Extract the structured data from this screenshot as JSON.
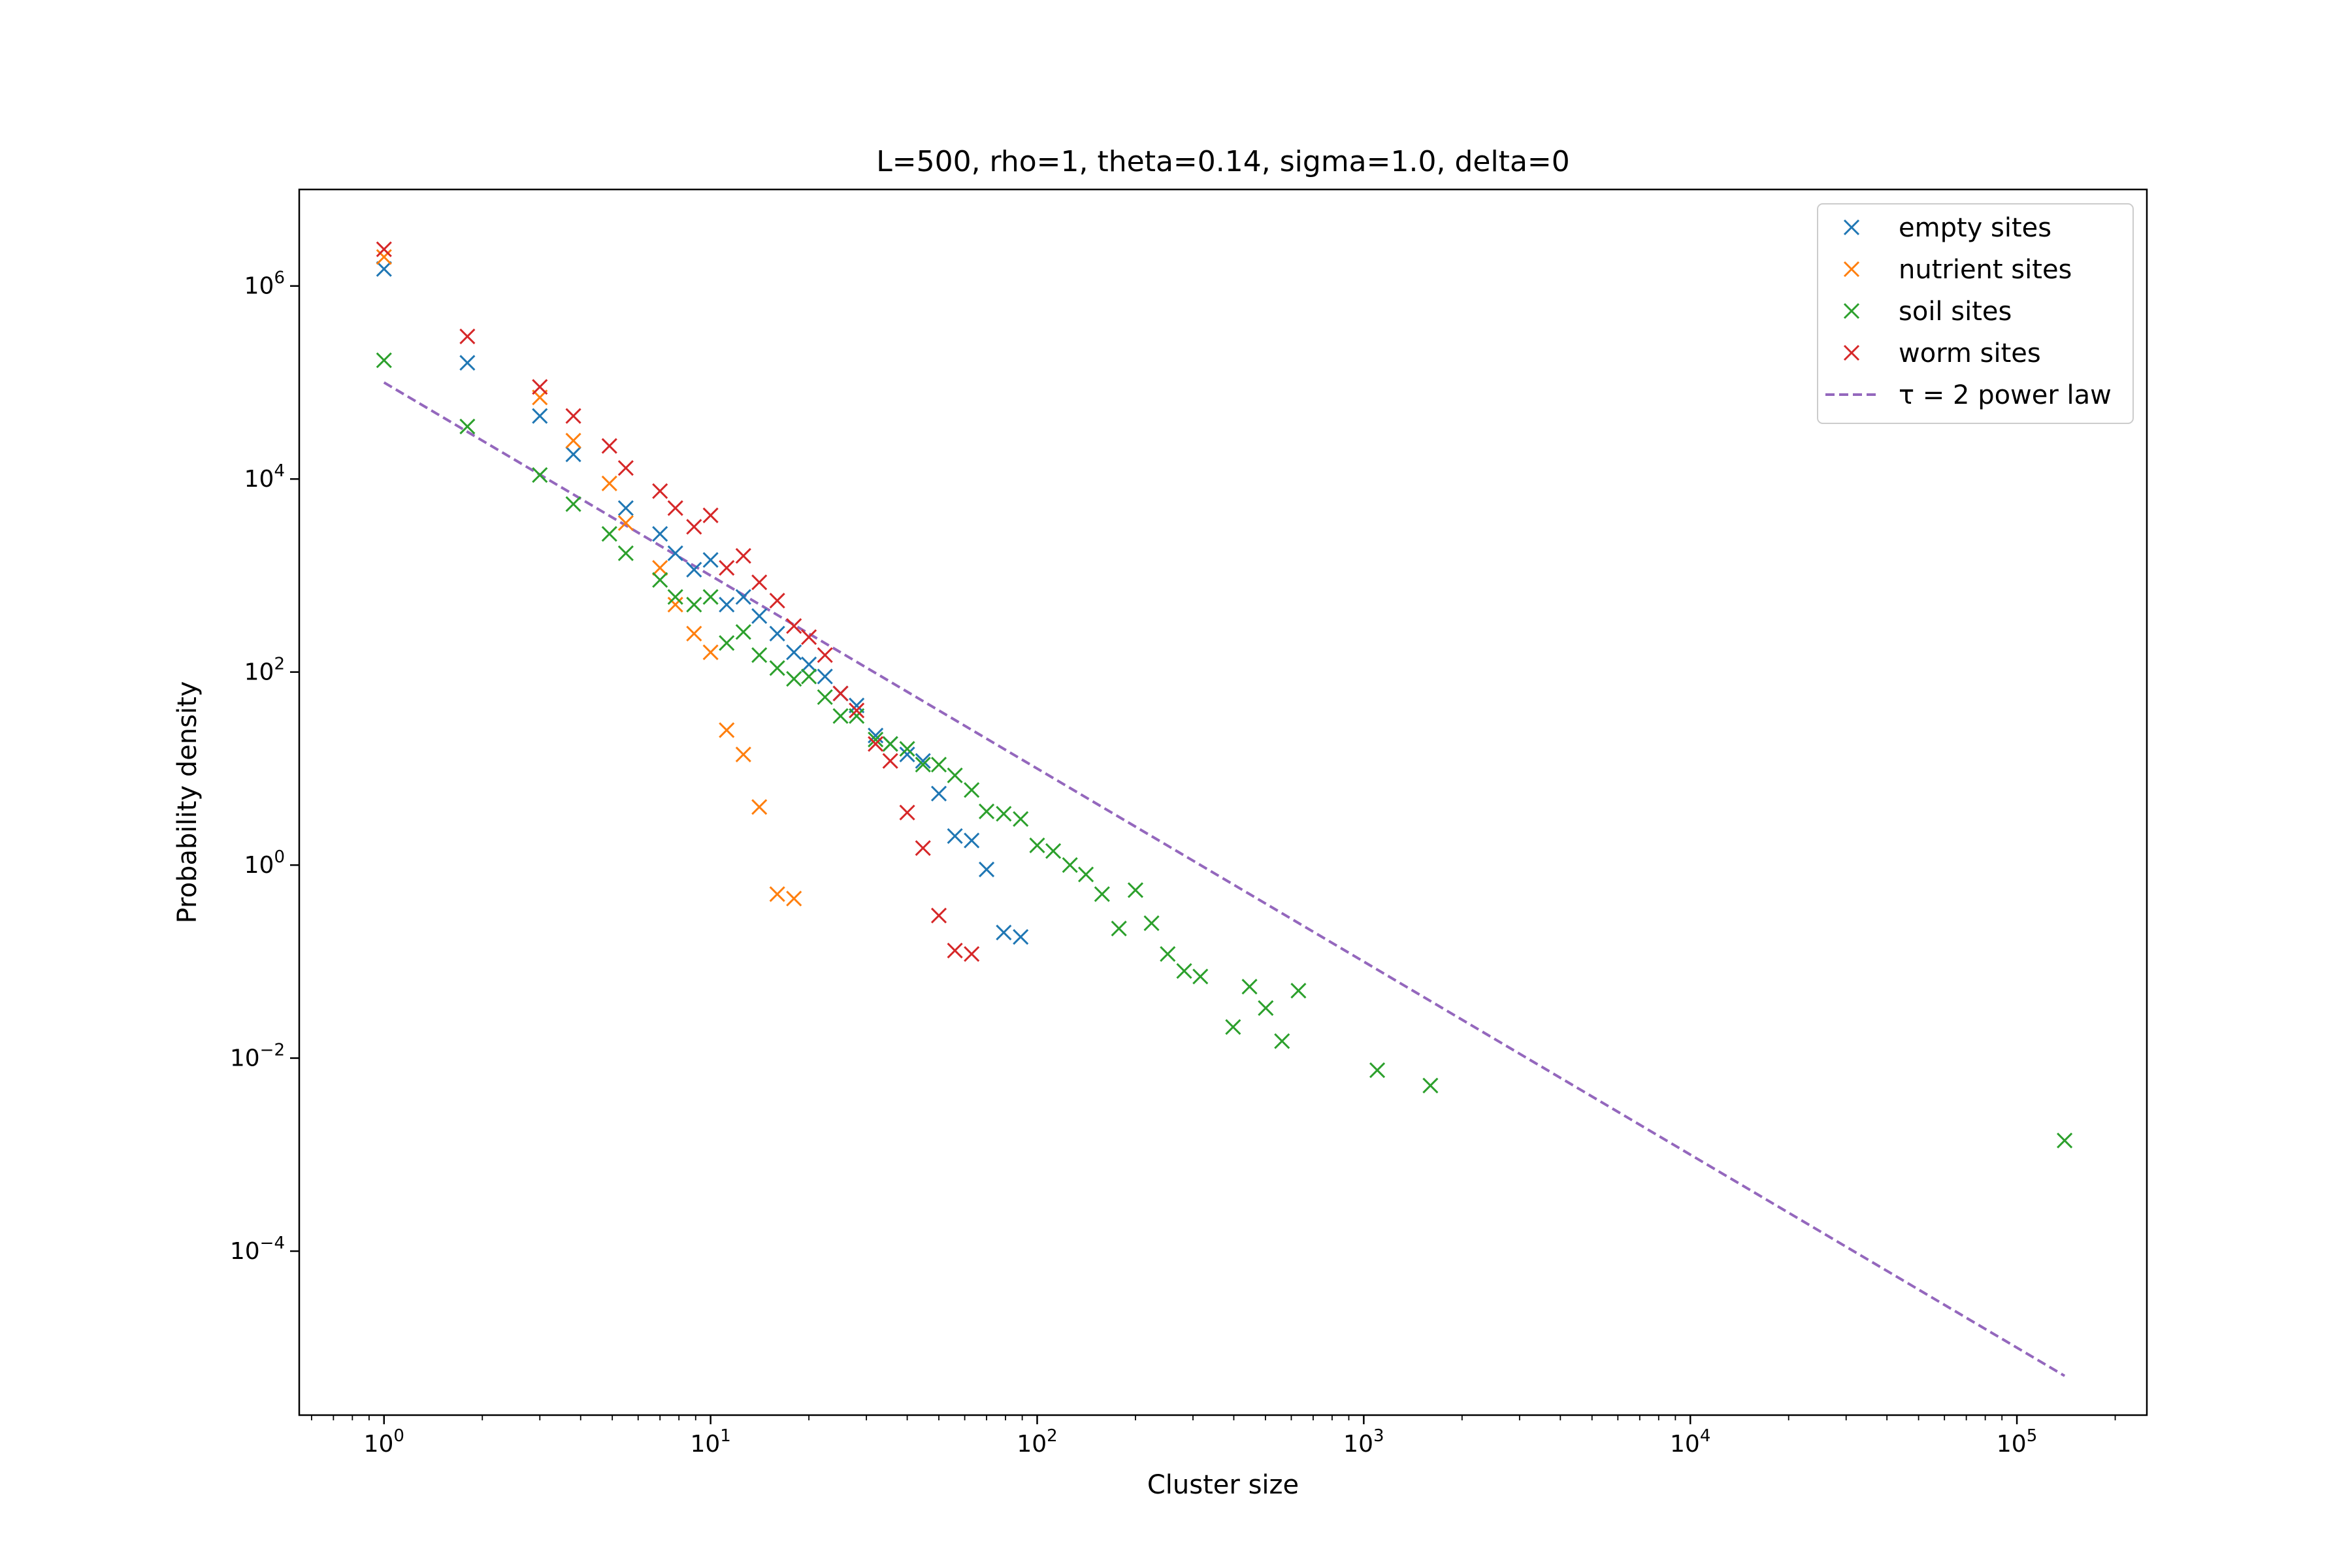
{
  "chart_data": {
    "type": "scatter",
    "title": "L=500, rho=1, theta=0.14, sigma=1.0, delta=0",
    "xlabel": "Cluster size",
    "ylabel": "Probability density",
    "xscale": "log",
    "yscale": "log",
    "xlim": [
      0.55,
      250000
    ],
    "ylim": [
      2e-06,
      10000000.0
    ],
    "xticks": [
      1,
      10,
      100,
      1000,
      10000,
      100000
    ],
    "xtick_labels": [
      {
        "base": "10",
        "exp": "0"
      },
      {
        "base": "10",
        "exp": "1"
      },
      {
        "base": "10",
        "exp": "2"
      },
      {
        "base": "10",
        "exp": "3"
      },
      {
        "base": "10",
        "exp": "4"
      },
      {
        "base": "10",
        "exp": "5"
      }
    ],
    "yticks": [
      0.0001,
      0.01,
      1,
      100,
      10000,
      1000000
    ],
    "ytick_labels": [
      {
        "base": "10",
        "exp": "−4"
      },
      {
        "base": "10",
        "exp": "−2"
      },
      {
        "base": "10",
        "exp": "0"
      },
      {
        "base": "10",
        "exp": "2"
      },
      {
        "base": "10",
        "exp": "4"
      },
      {
        "base": "10",
        "exp": "6"
      }
    ],
    "grid": false,
    "legend_position": "top-right",
    "series": [
      {
        "name": "empty sites",
        "color": "#1f77b4",
        "marker": "x",
        "points": [
          [
            1,
            1500000
          ],
          [
            1.8,
            160000
          ],
          [
            3,
            45000
          ],
          [
            3.8,
            18000
          ],
          [
            5.5,
            5000
          ],
          [
            7,
            2700
          ],
          [
            7.8,
            1700
          ],
          [
            8.9,
            1150
          ],
          [
            10,
            1450
          ],
          [
            11.2,
            500
          ],
          [
            12.6,
            600
          ],
          [
            14.1,
            380
          ],
          [
            16,
            250
          ],
          [
            18,
            160
          ],
          [
            20,
            120
          ],
          [
            22.4,
            90
          ],
          [
            25,
            60
          ],
          [
            28,
            45
          ],
          [
            32,
            22
          ],
          [
            35.5,
            18
          ],
          [
            40,
            14
          ],
          [
            44.7,
            12
          ],
          [
            50,
            5.5
          ],
          [
            56,
            2
          ],
          [
            63,
            1.8
          ],
          [
            70,
            0.9
          ],
          [
            79,
            0.2
          ],
          [
            89,
            0.18
          ]
        ]
      },
      {
        "name": "nutrient sites",
        "color": "#ff7f0e",
        "marker": "x",
        "points": [
          [
            1,
            2000000
          ],
          [
            3,
            70000
          ],
          [
            3.8,
            25000
          ],
          [
            4.9,
            9000
          ],
          [
            5.5,
            3500
          ],
          [
            7,
            1200
          ],
          [
            7.8,
            500
          ],
          [
            8.9,
            250
          ],
          [
            10,
            160
          ],
          [
            11.2,
            25
          ],
          [
            12.6,
            14
          ],
          [
            14.1,
            4
          ],
          [
            16,
            0.5
          ],
          [
            18,
            0.45
          ]
        ]
      },
      {
        "name": "soil sites",
        "color": "#2ca02c",
        "marker": "x",
        "points": [
          [
            1,
            170000
          ],
          [
            1.8,
            35000
          ],
          [
            3,
            11000
          ],
          [
            3.8,
            5500
          ],
          [
            4.9,
            2700
          ],
          [
            5.5,
            1700
          ],
          [
            7,
            900
          ],
          [
            7.8,
            600
          ],
          [
            8.9,
            500
          ],
          [
            10,
            600
          ],
          [
            11.2,
            200
          ],
          [
            12.6,
            260
          ],
          [
            14.1,
            150
          ],
          [
            16,
            110
          ],
          [
            18,
            85
          ],
          [
            20,
            90
          ],
          [
            22.4,
            55
          ],
          [
            25,
            35
          ],
          [
            28,
            35
          ],
          [
            32,
            20
          ],
          [
            35.5,
            18
          ],
          [
            40,
            16
          ],
          [
            44.7,
            11
          ],
          [
            50,
            11
          ],
          [
            56,
            8.5
          ],
          [
            63,
            6
          ],
          [
            70,
            3.6
          ],
          [
            79,
            3.4
          ],
          [
            89,
            3
          ],
          [
            100,
            1.6
          ],
          [
            112,
            1.4
          ],
          [
            126,
            1
          ],
          [
            141,
            0.8
          ],
          [
            158,
            0.5
          ],
          [
            178,
            0.22
          ],
          [
            200,
            0.55
          ],
          [
            224,
            0.25
          ],
          [
            251,
            0.12
          ],
          [
            282,
            0.08
          ],
          [
            316,
            0.07
          ],
          [
            398,
            0.021
          ],
          [
            447,
            0.055
          ],
          [
            501,
            0.033
          ],
          [
            562,
            0.015
          ],
          [
            631,
            0.05
          ],
          [
            1100,
            0.0075
          ],
          [
            1600,
            0.0052
          ],
          [
            140000,
            0.0014
          ]
        ]
      },
      {
        "name": "worm sites",
        "color": "#d62728",
        "marker": "x",
        "points": [
          [
            1,
            2400000
          ],
          [
            1.8,
            300000
          ],
          [
            3,
            90000
          ],
          [
            3.8,
            45000
          ],
          [
            4.9,
            22000
          ],
          [
            5.5,
            13000
          ],
          [
            7,
            7500
          ],
          [
            7.8,
            5000
          ],
          [
            8.9,
            3200
          ],
          [
            10,
            4200
          ],
          [
            11.2,
            1200
          ],
          [
            12.6,
            1600
          ],
          [
            14.1,
            850
          ],
          [
            16,
            550
          ],
          [
            18,
            300
          ],
          [
            20,
            230
          ],
          [
            22.4,
            150
          ],
          [
            25,
            60
          ],
          [
            28,
            40
          ],
          [
            32,
            18
          ],
          [
            35.5,
            12
          ],
          [
            40,
            3.5
          ],
          [
            44.7,
            1.5
          ],
          [
            50,
            0.3
          ],
          [
            56,
            0.13
          ],
          [
            63,
            0.12
          ]
        ]
      }
    ],
    "reference_line": {
      "name": "τ = 2 power law",
      "color": "#9467bd",
      "style": "dashed",
      "x": [
        1,
        140000
      ],
      "y": [
        100000,
        5.1e-06
      ]
    }
  }
}
